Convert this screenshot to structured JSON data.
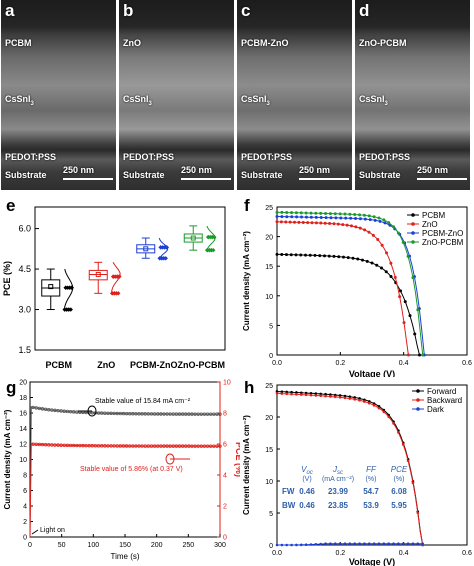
{
  "sem": [
    {
      "letter": "a",
      "labels": {
        "top": "PCBM",
        "mid": "CsSnI",
        "bot1": "PEDOT:PSS",
        "bot2": "Substrate"
      },
      "scale": "250 nm"
    },
    {
      "letter": "b",
      "labels": {
        "top": "ZnO",
        "mid": "CsSnI",
        "bot1": "PEDOT:PSS",
        "bot2": "Substrate"
      },
      "scale": "250 nm"
    },
    {
      "letter": "c",
      "labels": {
        "top": "PCBM-ZnO",
        "mid": "CsSnI",
        "bot1": "PEDOT:PSS",
        "bot2": "Substrate"
      },
      "scale": "250 nm"
    },
    {
      "letter": "d",
      "labels": {
        "top": "ZnO-PCBM",
        "mid": "CsSnI",
        "bot1": "PEDOT:PSS",
        "bot2": "Substrate"
      },
      "scale": "250 nm"
    }
  ],
  "subscript_3": "3",
  "panel_e": {
    "letter": "e"
  },
  "panel_f": {
    "letter": "f"
  },
  "panel_g": {
    "letter": "g",
    "annotation1": "Stable value of 15.84 mA cm⁻²",
    "annotation2": "Stable value of 5.86% (at 0.37 V)",
    "light_on": "Light on"
  },
  "panel_h": {
    "letter": "h",
    "table_headers": [
      "V",
      "J",
      "FF",
      "PCE"
    ],
    "header_subs": [
      "oc",
      "sc",
      "",
      ""
    ],
    "units": [
      "(V)",
      "(mA cm⁻²)",
      "(%)",
      "(%)"
    ],
    "rows": [
      {
        "label": "FW",
        "vals": [
          "0.46",
          "23.99",
          "54.7",
          "6.08"
        ]
      },
      {
        "label": "BW",
        "vals": [
          "0.46",
          "23.85",
          "53.9",
          "5.95"
        ]
      }
    ]
  },
  "chart_data": [
    {
      "type": "box",
      "panel": "e",
      "categories": [
        "PCBM",
        "ZnO",
        "PCBM-ZnO",
        "ZnO-PCBM"
      ],
      "colors": [
        "#000000",
        "#e0201b",
        "#1b3fd8",
        "#1a9a2a"
      ],
      "ylabel": "PCE (%)",
      "yticks": [
        "1.5",
        "3.0",
        "4.5",
        "6.0"
      ],
      "ylim": [
        1.5,
        6.8
      ],
      "stats": [
        {
          "min": 3.0,
          "q1": 3.5,
          "median": 3.8,
          "q3": 4.1,
          "max": 4.5,
          "mean": 3.85
        },
        {
          "min": 3.6,
          "q1": 4.1,
          "median": 4.3,
          "q3": 4.45,
          "max": 4.75,
          "mean": 4.3
        },
        {
          "min": 4.9,
          "q1": 5.1,
          "median": 5.25,
          "q3": 5.4,
          "max": 5.65,
          "mean": 5.25
        },
        {
          "min": 5.2,
          "q1": 5.5,
          "median": 5.65,
          "q3": 5.8,
          "max": 6.1,
          "mean": 5.65
        }
      ]
    },
    {
      "type": "line",
      "panel": "f",
      "xlabel": "Voltage (V)",
      "ylabel": "Current density (mA cm⁻²)",
      "xticks": [
        "0.0",
        "0.2",
        "0.4",
        "0.6"
      ],
      "yticks": [
        "0",
        "5",
        "10",
        "15",
        "20",
        "25"
      ],
      "xlim": [
        0,
        0.6
      ],
      "ylim": [
        0,
        25
      ],
      "legend_position": "top-right",
      "series": [
        {
          "name": "PCBM",
          "color": "#000000",
          "jsc": 17.0,
          "voc": 0.45
        },
        {
          "name": "ZnO",
          "color": "#e0201b",
          "jsc": 22.5,
          "voc": 0.415
        },
        {
          "name": "PCBM-ZnO",
          "color": "#1b3fd8",
          "jsc": 23.4,
          "voc": 0.465
        },
        {
          "name": "ZnO-PCBM",
          "color": "#1a9a2a",
          "jsc": 24.1,
          "voc": 0.46
        }
      ]
    },
    {
      "type": "line",
      "panel": "g",
      "xlabel": "Time (s)",
      "ylabel_left": "Current density (mA cm⁻²)",
      "ylabel_right": "PCE (%)",
      "xticks": [
        "0",
        "50",
        "100",
        "150",
        "200",
        "250",
        "300"
      ],
      "yticks_left": [
        "0",
        "2",
        "4",
        "6",
        "8",
        "10",
        "12",
        "14",
        "16",
        "18",
        "20"
      ],
      "yticks_right": [
        "0",
        "2",
        "4",
        "6",
        "8",
        "10"
      ],
      "xlim": [
        0,
        300
      ],
      "ylim_left": [
        0,
        20
      ],
      "ylim_right": [
        0,
        10
      ],
      "series": [
        {
          "name": "Current density",
          "color": "#555555",
          "start": 16.8,
          "stable": 15.84
        },
        {
          "name": "PCE",
          "color": "#e0201b",
          "start": 6.0,
          "stable": 5.86
        }
      ]
    },
    {
      "type": "line",
      "panel": "h",
      "xlabel": "Voltage (V)",
      "ylabel": "Current density (mA cm⁻²)",
      "xticks": [
        "0.0",
        "0.2",
        "0.4",
        "0.6"
      ],
      "yticks": [
        "0",
        "5",
        "10",
        "15",
        "20",
        "25"
      ],
      "xlim": [
        0,
        0.6
      ],
      "ylim": [
        0,
        25
      ],
      "legend_position": "top-right",
      "series": [
        {
          "name": "Forward",
          "color": "#000000",
          "jsc": 23.99,
          "voc": 0.46
        },
        {
          "name": "Backward",
          "color": "#e0201b",
          "jsc": 23.85,
          "voc": 0.46
        },
        {
          "name": "Dark",
          "color": "#1b3fd8",
          "jsc": 0,
          "voc": 0.44
        }
      ]
    }
  ]
}
